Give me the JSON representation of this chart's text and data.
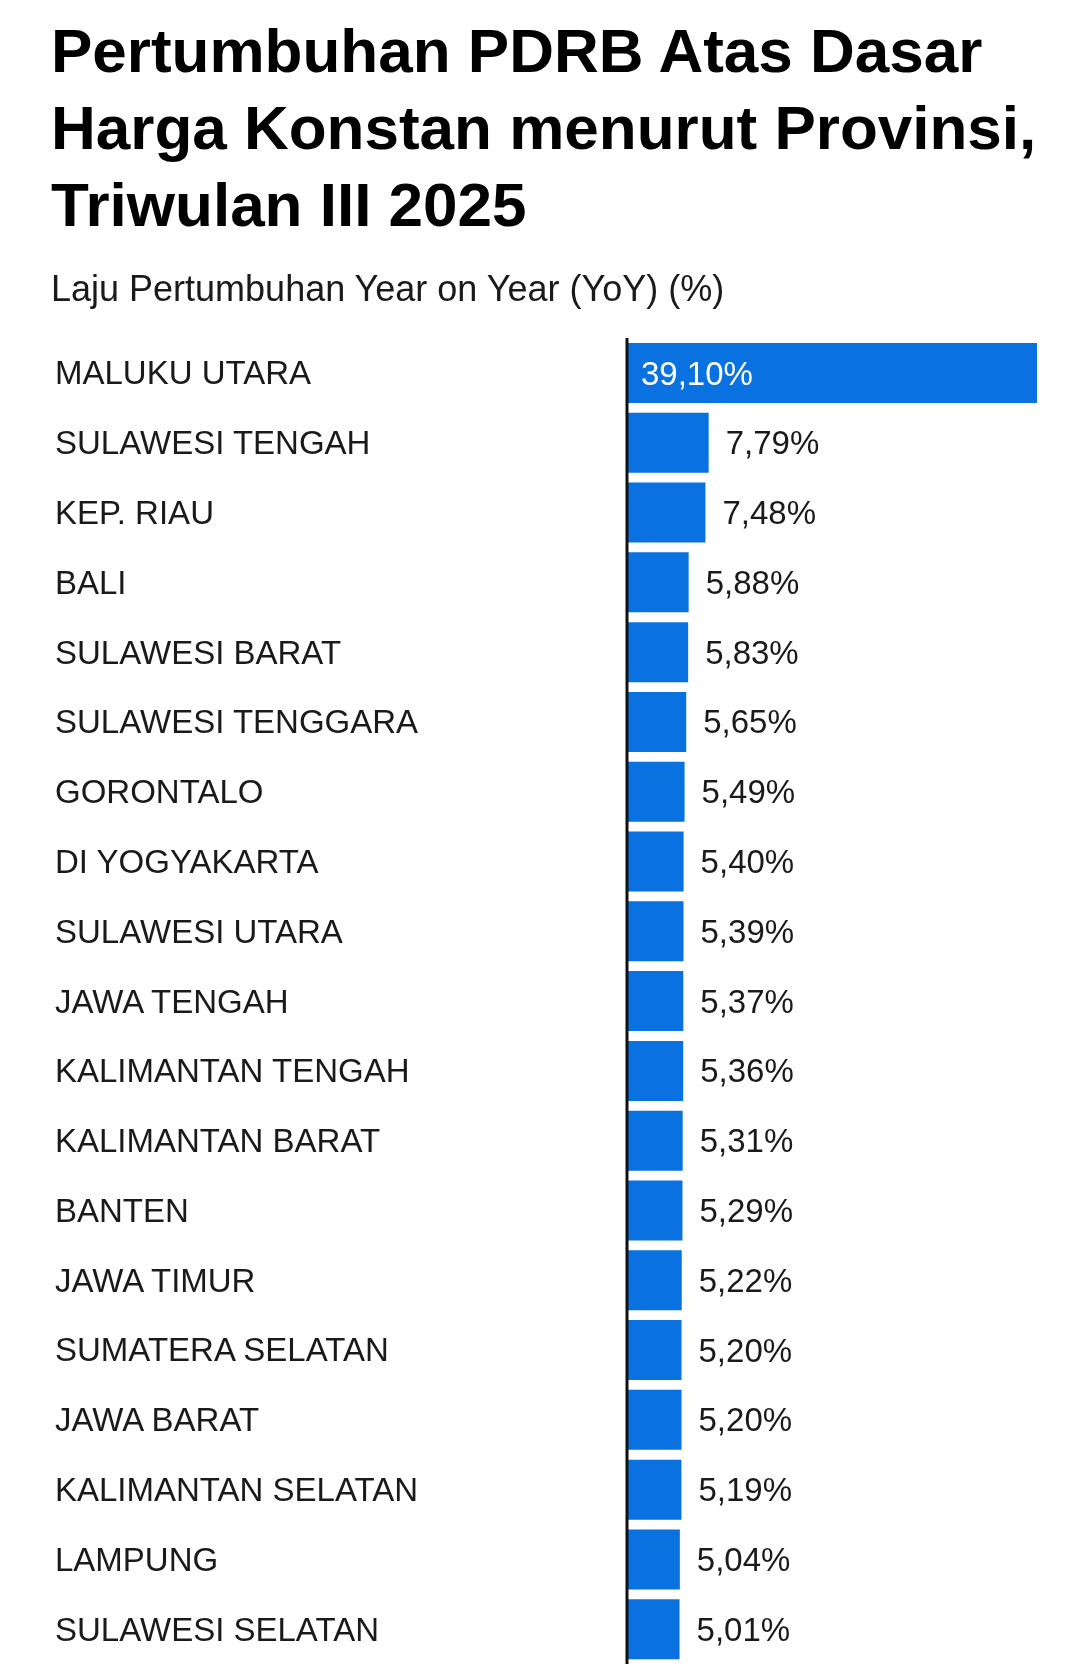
{
  "chart_data": {
    "type": "bar",
    "orientation": "horizontal",
    "title": "Pertumbuhan PDRB Atas Dasar Harga Konstan menurut Provinsi, Triwulan III 2025",
    "subtitle": "Laju Pertumbuhan Year on Year (YoY) (%)",
    "categories": [
      "MALUKU UTARA",
      "SULAWESI TENGAH",
      "KEP. RIAU",
      "BALI",
      "SULAWESI BARAT",
      "SULAWESI TENGGARA",
      "GORONTALO",
      "DI YOGYAKARTA",
      "SULAWESI UTARA",
      "JAWA TENGAH",
      "KALIMANTAN TENGAH",
      "KALIMANTAN BARAT",
      "BANTEN",
      "JAWA TIMUR",
      "SUMATERA SELATAN",
      "JAWA BARAT",
      "KALIMANTAN SELATAN",
      "LAMPUNG",
      "SULAWESI SELATAN"
    ],
    "values": [
      39.1,
      7.79,
      7.48,
      5.88,
      5.83,
      5.65,
      5.49,
      5.4,
      5.39,
      5.37,
      5.36,
      5.31,
      5.29,
      5.22,
      5.2,
      5.2,
      5.19,
      5.04,
      5.01
    ],
    "value_labels": [
      "39,10%",
      "7,79%",
      "7,48%",
      "5,88%",
      "5,83%",
      "5,65%",
      "5,49%",
      "5,40%",
      "5,39%",
      "5,37%",
      "5,36%",
      "5,31%",
      "5,29%",
      "5,22%",
      "5,20%",
      "5,20%",
      "5,19%",
      "5,04%",
      "5,01%"
    ],
    "color": "#0a72e0"
  }
}
